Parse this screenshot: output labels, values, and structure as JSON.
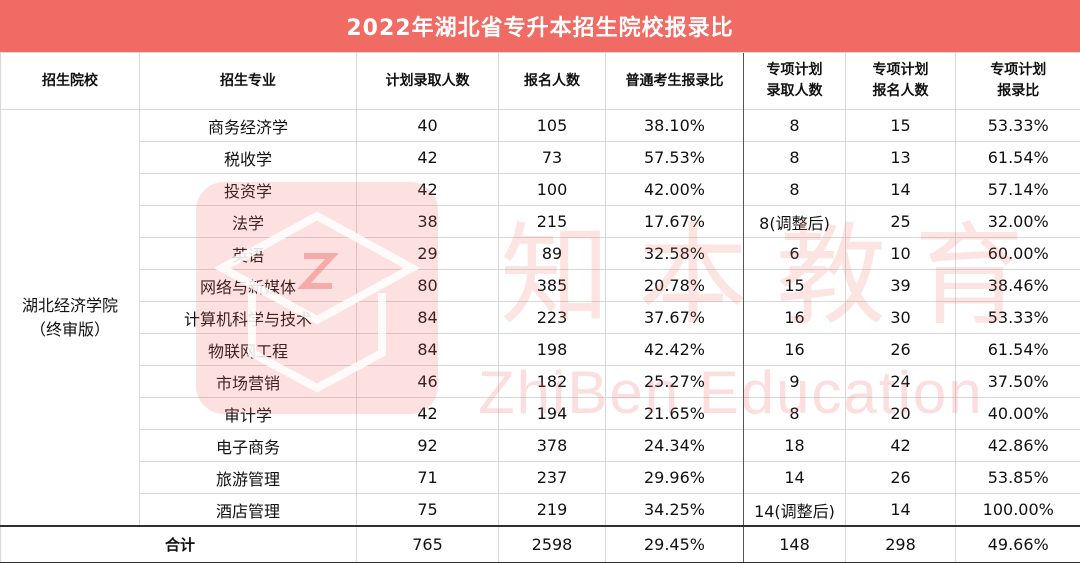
{
  "title": "2022年湖北省专升本招生院校报录比",
  "headers": [
    "招生院校",
    "招生专业",
    "计划录取人数",
    "报名人数",
    "普通考生报录比",
    "专项计划录取人数",
    "专项计划报名人数",
    "专项计划报录比"
  ],
  "header_lines": {
    "c5": [
      "专项计划",
      "录取人数"
    ],
    "c6": [
      "专项计划",
      "报名人数"
    ],
    "c7": [
      "专项计划",
      "报录比"
    ]
  },
  "school": [
    "湖北经济学院",
    "（终审版）"
  ],
  "rows": [
    {
      "major": "商务经济学",
      "plan": "40",
      "applied": "105",
      "ratio": "38.10%",
      "sp_plan": "8",
      "sp_applied": "15",
      "sp_ratio": "53.33%"
    },
    {
      "major": "税收学",
      "plan": "42",
      "applied": "73",
      "ratio": "57.53%",
      "sp_plan": "8",
      "sp_applied": "13",
      "sp_ratio": "61.54%"
    },
    {
      "major": "投资学",
      "plan": "42",
      "applied": "100",
      "ratio": "42.00%",
      "sp_plan": "8",
      "sp_applied": "14",
      "sp_ratio": "57.14%"
    },
    {
      "major": "法学",
      "plan": "38",
      "applied": "215",
      "ratio": "17.67%",
      "sp_plan": "8(调整后)",
      "sp_applied": "25",
      "sp_ratio": "32.00%"
    },
    {
      "major": "英语",
      "plan": "29",
      "applied": "89",
      "ratio": "32.58%",
      "sp_plan": "6",
      "sp_applied": "10",
      "sp_ratio": "60.00%"
    },
    {
      "major": "网络与新媒体",
      "plan": "80",
      "applied": "385",
      "ratio": "20.78%",
      "sp_plan": "15",
      "sp_applied": "39",
      "sp_ratio": "38.46%"
    },
    {
      "major": "计算机科学与技术",
      "plan": "84",
      "applied": "223",
      "ratio": "37.67%",
      "sp_plan": "16",
      "sp_applied": "30",
      "sp_ratio": "53.33%"
    },
    {
      "major": "物联网工程",
      "plan": "84",
      "applied": "198",
      "ratio": "42.42%",
      "sp_plan": "16",
      "sp_applied": "26",
      "sp_ratio": "61.54%"
    },
    {
      "major": "市场营销",
      "plan": "46",
      "applied": "182",
      "ratio": "25.27%",
      "sp_plan": "9",
      "sp_applied": "24",
      "sp_ratio": "37.50%"
    },
    {
      "major": "审计学",
      "plan": "42",
      "applied": "194",
      "ratio": "21.65%",
      "sp_plan": "8",
      "sp_applied": "20",
      "sp_ratio": "40.00%"
    },
    {
      "major": "电子商务",
      "plan": "92",
      "applied": "378",
      "ratio": "24.34%",
      "sp_plan": "18",
      "sp_applied": "42",
      "sp_ratio": "42.86%"
    },
    {
      "major": "旅游管理",
      "plan": "71",
      "applied": "237",
      "ratio": "29.96%",
      "sp_plan": "14",
      "sp_applied": "26",
      "sp_ratio": "53.85%"
    },
    {
      "major": "酒店管理",
      "plan": "75",
      "applied": "219",
      "ratio": "34.25%",
      "sp_plan": "14(调整后)",
      "sp_applied": "14",
      "sp_ratio": "100.00%"
    }
  ],
  "total": {
    "label": "合计",
    "plan": "765",
    "applied": "2598",
    "ratio": "29.45%",
    "sp_plan": "148",
    "sp_applied": "298",
    "sp_ratio": "49.66%"
  },
  "watermark": {
    "cn": "知本教育",
    "en": "ZhiBen Education"
  },
  "colors": {
    "title_bg": "#ef6b63",
    "title_text": "#ffffff",
    "watermark": "#ef6b63"
  }
}
